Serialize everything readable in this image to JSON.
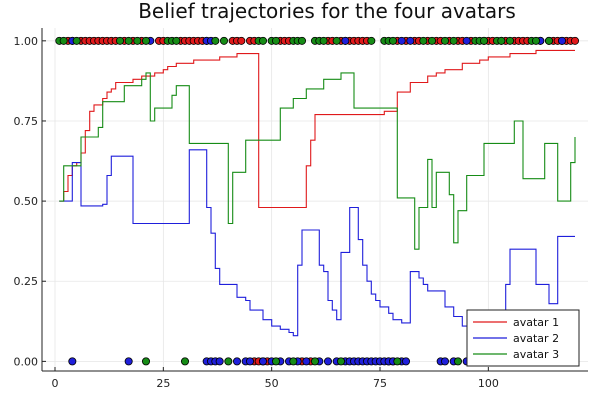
{
  "chart_data": {
    "type": "line",
    "title": "Belief trajectories for the four avatars",
    "xlabel": "",
    "ylabel": "",
    "xlim": [
      -3,
      123
    ],
    "ylim": [
      -0.03,
      1.04
    ],
    "x_ticks": [
      0,
      25,
      50,
      75,
      100
    ],
    "x_tick_labels": [
      "0",
      "25",
      "50",
      "75",
      "100"
    ],
    "y_ticks": [
      0.0,
      0.25,
      0.5,
      0.75,
      1.0
    ],
    "y_tick_labels": [
      "0.00",
      "0.25",
      "0.50",
      "0.75",
      "1.00"
    ],
    "grid": true,
    "legend_position": "bottom-right",
    "series": [
      {
        "name": "avatar 1",
        "color": "#e0191b",
        "x": [
          1,
          2,
          3,
          4,
          5,
          6,
          7,
          8,
          9,
          10,
          11,
          12,
          13,
          14,
          15,
          16,
          17,
          18,
          19,
          20,
          21,
          22,
          23,
          24,
          25,
          26,
          27,
          28,
          29,
          30,
          32,
          34,
          36,
          38,
          40,
          42,
          44,
          45,
          46,
          47,
          50,
          55,
          57,
          58,
          59,
          60,
          62,
          65,
          68,
          70,
          72,
          74,
          76,
          78,
          79,
          80,
          82,
          84,
          86,
          88,
          90,
          92,
          94,
          96,
          98,
          100,
          102,
          105,
          108,
          111,
          114,
          117,
          120
        ],
        "y": [
          0.5,
          0.53,
          0.58,
          0.61,
          0.62,
          0.65,
          0.72,
          0.78,
          0.8,
          0.8,
          0.82,
          0.84,
          0.85,
          0.87,
          0.87,
          0.87,
          0.87,
          0.88,
          0.88,
          0.89,
          0.89,
          0.89,
          0.9,
          0.9,
          0.91,
          0.92,
          0.92,
          0.93,
          0.93,
          0.93,
          0.94,
          0.94,
          0.94,
          0.95,
          0.95,
          0.96,
          0.96,
          0.96,
          0.96,
          0.48,
          0.48,
          0.48,
          0.48,
          0.61,
          0.69,
          0.77,
          0.77,
          0.77,
          0.77,
          0.77,
          0.77,
          0.77,
          0.78,
          0.78,
          0.84,
          0.84,
          0.87,
          0.87,
          0.89,
          0.9,
          0.91,
          0.91,
          0.93,
          0.93,
          0.94,
          0.95,
          0.95,
          0.96,
          0.96,
          0.97,
          0.97,
          0.97,
          0.97
        ]
      },
      {
        "name": "avatar 2",
        "color": "#1f1fdb",
        "x": [
          1,
          3,
          4,
          5,
          6,
          10,
          11,
          12,
          13,
          16,
          17,
          18,
          20,
          25,
          30,
          31,
          32,
          33,
          34,
          35,
          36,
          37,
          38,
          40,
          42,
          44,
          45,
          46,
          48,
          50,
          52,
          54,
          55,
          56,
          57,
          58,
          59,
          60,
          61,
          62,
          63,
          64,
          65,
          66,
          67,
          68,
          69,
          70,
          71,
          72,
          73,
          74,
          75,
          77,
          78,
          79,
          80,
          81,
          82,
          83,
          84,
          85,
          86,
          87,
          88,
          90,
          92,
          94,
          96,
          98,
          100,
          102,
          104,
          105,
          107,
          108,
          110,
          111,
          112,
          114,
          115,
          116,
          117,
          118,
          120
        ],
        "y": [
          0.5,
          0.5,
          0.62,
          0.62,
          0.485,
          0.485,
          0.49,
          0.58,
          0.64,
          0.64,
          0.64,
          0.43,
          0.43,
          0.43,
          0.43,
          0.66,
          0.66,
          0.66,
          0.66,
          0.48,
          0.4,
          0.29,
          0.24,
          0.24,
          0.2,
          0.19,
          0.16,
          0.16,
          0.13,
          0.11,
          0.1,
          0.09,
          0.08,
          0.3,
          0.41,
          0.41,
          0.41,
          0.41,
          0.3,
          0.28,
          0.19,
          0.16,
          0.13,
          0.34,
          0.34,
          0.48,
          0.48,
          0.38,
          0.3,
          0.25,
          0.21,
          0.19,
          0.17,
          0.15,
          0.13,
          0.13,
          0.12,
          0.12,
          0.28,
          0.28,
          0.26,
          0.24,
          0.22,
          0.22,
          0.22,
          0.17,
          0.14,
          0.11,
          0.11,
          0.11,
          0.11,
          0.11,
          0.24,
          0.35,
          0.35,
          0.35,
          0.35,
          0.24,
          0.24,
          0.18,
          0.18,
          0.39,
          0.39,
          0.39,
          0.39
        ]
      },
      {
        "name": "avatar 3",
        "color": "#168c16",
        "x": [
          1,
          2,
          3,
          4,
          5,
          6,
          7,
          8,
          9,
          10,
          11,
          12,
          13,
          14,
          15,
          16,
          17,
          18,
          19,
          20,
          21,
          22,
          23,
          24,
          25,
          26,
          27,
          28,
          29,
          30,
          31,
          32,
          33,
          34,
          35,
          36,
          37,
          38,
          39,
          40,
          41,
          42,
          43,
          44,
          45,
          46,
          47,
          48,
          49,
          50,
          51,
          52,
          53,
          54,
          55,
          56,
          57,
          58,
          59,
          60,
          61,
          62,
          63,
          64,
          65,
          66,
          67,
          68,
          69,
          70,
          71,
          72,
          73,
          74,
          75,
          76,
          77,
          78,
          79,
          80,
          81,
          82,
          83,
          84,
          85,
          86,
          87,
          88,
          89,
          90,
          91,
          92,
          93,
          94,
          95,
          96,
          97,
          98,
          99,
          100,
          101,
          102,
          103,
          104,
          105,
          106,
          107,
          108,
          109,
          110,
          111,
          112,
          113,
          114,
          115,
          116,
          117,
          118,
          119,
          120
        ],
        "y": [
          0.5,
          0.61,
          0.61,
          0.61,
          0.61,
          0.7,
          0.7,
          0.7,
          0.7,
          0.73,
          0.81,
          0.81,
          0.81,
          0.81,
          0.81,
          0.86,
          0.86,
          0.86,
          0.86,
          0.88,
          0.9,
          0.75,
          0.79,
          0.79,
          0.79,
          0.79,
          0.83,
          0.86,
          0.86,
          0.86,
          0.68,
          0.68,
          0.68,
          0.68,
          0.68,
          0.68,
          0.68,
          0.68,
          0.68,
          0.43,
          0.59,
          0.59,
          0.59,
          0.69,
          0.69,
          0.69,
          0.69,
          0.69,
          0.69,
          0.69,
          0.69,
          0.79,
          0.79,
          0.79,
          0.82,
          0.82,
          0.82,
          0.85,
          0.85,
          0.85,
          0.85,
          0.88,
          0.88,
          0.88,
          0.88,
          0.9,
          0.9,
          0.9,
          0.79,
          0.79,
          0.79,
          0.79,
          0.79,
          0.79,
          0.79,
          0.79,
          0.79,
          0.79,
          0.51,
          0.51,
          0.51,
          0.51,
          0.35,
          0.48,
          0.48,
          0.63,
          0.48,
          0.59,
          0.59,
          0.59,
          0.52,
          0.37,
          0.47,
          0.47,
          0.58,
          0.58,
          0.58,
          0.58,
          0.68,
          0.68,
          0.68,
          0.68,
          0.68,
          0.68,
          0.68,
          0.75,
          0.75,
          0.57,
          0.57,
          0.57,
          0.57,
          0.57,
          0.68,
          0.68,
          0.68,
          0.5,
          0.5,
          0.5,
          0.62,
          0.7
        ]
      }
    ],
    "scatter_points": {
      "red": {
        "color": "#e0191b",
        "top_x": [
          3,
          4,
          6,
          7,
          8,
          9,
          10,
          11,
          12,
          13,
          14,
          16,
          18,
          20,
          24,
          25,
          29,
          30,
          31,
          32,
          33,
          34,
          35,
          41,
          42,
          43,
          45,
          46,
          52,
          53,
          54,
          63,
          64,
          66,
          67,
          68,
          69,
          70,
          71,
          72,
          79,
          81,
          83,
          84,
          86,
          88,
          89,
          91,
          93,
          94,
          96,
          100,
          101,
          104,
          106,
          107,
          108,
          109,
          112,
          115,
          116,
          117,
          118,
          119,
          120
        ],
        "bottom_x": [
          46,
          47,
          48,
          49,
          57,
          59,
          77,
          78
        ]
      },
      "blue": {
        "color": "#1f1fdb",
        "top_x": [
          4,
          22,
          35,
          36,
          67,
          80,
          82,
          95,
          99,
          103,
          112,
          114,
          117
        ],
        "bottom_x": [
          4,
          17,
          35,
          36,
          37,
          38,
          42,
          44,
          45,
          48,
          50,
          52,
          54,
          56,
          58,
          61,
          63,
          65,
          67,
          68,
          69,
          70,
          71,
          72,
          73,
          74,
          75,
          76,
          77,
          78,
          80,
          81,
          89,
          90,
          92,
          95,
          96,
          98,
          104,
          105,
          106,
          110,
          111,
          112,
          113,
          114,
          115,
          116
        ]
      },
      "green": {
        "color": "#168c16",
        "top_x": [
          1,
          2,
          5,
          15,
          17,
          19,
          21,
          26,
          27,
          28,
          37,
          39,
          47,
          48,
          50,
          51,
          55,
          56,
          57,
          60,
          61,
          62,
          65,
          73,
          76,
          77,
          78,
          85,
          87,
          90,
          92,
          97,
          98,
          99,
          102,
          103,
          105,
          110,
          111,
          114
        ],
        "bottom_x": [
          21,
          30,
          40,
          51,
          55,
          60,
          66,
          79,
          93,
          100,
          107
        ]
      }
    }
  }
}
